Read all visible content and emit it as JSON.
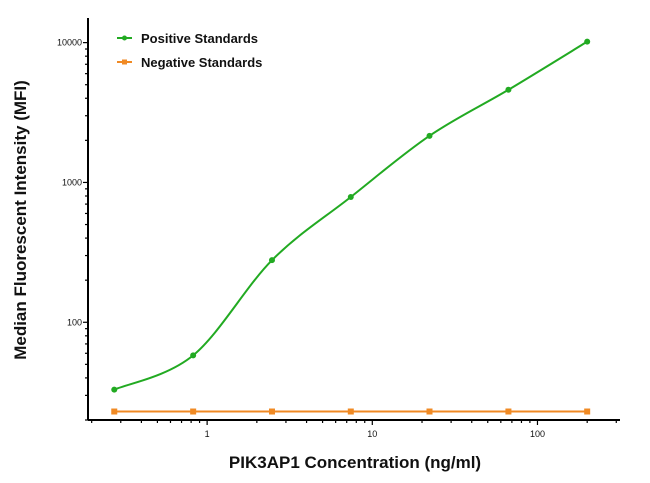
{
  "chart_data": {
    "type": "scatter",
    "title": "",
    "xlabel": "PIK3AP1 Concentration (ng/ml)",
    "ylabel": "Median Fluorescent Intensity (MFI)",
    "xscale": "log",
    "yscale": "log",
    "xlim": [
      0.19,
      316
    ],
    "ylim": [
      20,
      15000
    ],
    "xticks": [
      {
        "value": 1,
        "label": "1"
      },
      {
        "value": 10,
        "label": "10"
      },
      {
        "value": 100,
        "label": "100"
      }
    ],
    "yticks": [
      {
        "value": 100,
        "label": "100"
      },
      {
        "value": 1000,
        "label": "1000"
      },
      {
        "value": 10000,
        "label": "10000"
      }
    ],
    "grid": false,
    "legend_position": "top-left",
    "series": [
      {
        "name": "Positive Standards",
        "color": "#22aa22",
        "marker": "circle",
        "line": "fitted curve",
        "x": [
          0.274,
          0.823,
          2.47,
          7.41,
          22.2,
          66.7,
          200
        ],
        "y": [
          33,
          58,
          278,
          787,
          2155,
          4600,
          10160
        ]
      },
      {
        "name": "Negative Standards",
        "color": "#f08a24",
        "marker": "square",
        "line": "straight",
        "x": [
          0.274,
          0.823,
          2.47,
          7.41,
          22.2,
          66.7,
          200
        ],
        "y": [
          23,
          23,
          23,
          23,
          23,
          23,
          23
        ]
      }
    ]
  }
}
